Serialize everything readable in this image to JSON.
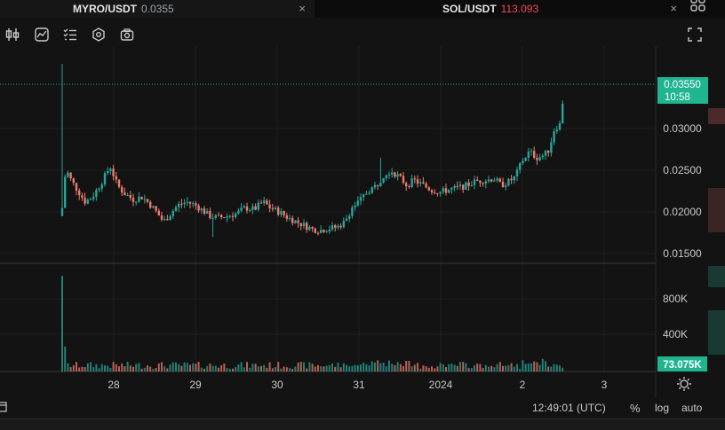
{
  "tabs": [
    {
      "symbol": "MYRO/USDT",
      "price": "0.0355",
      "close": "×"
    },
    {
      "symbol": "SOL/USDT",
      "price": "113.093",
      "close": "×"
    }
  ],
  "toolbar": {
    "icons": [
      "candles-icon",
      "indicator-icon",
      "checklist-icon",
      "settings-hex-icon",
      "camera-icon",
      "fullscreen-icon"
    ]
  },
  "price_axis": {
    "ticks": [
      "0.03000",
      "0.02500",
      "0.02000",
      "0.01500"
    ],
    "current_price": "0.03550",
    "countdown": "10:58"
  },
  "volume_axis": {
    "ticks": [
      "800K",
      "400K"
    ],
    "current_volume": "73.075K"
  },
  "time_axis": {
    "ticks": [
      "28",
      "29",
      "30",
      "31",
      "2024",
      "2",
      "3"
    ]
  },
  "bottom_bar": {
    "clock": "12:49:01 (UTC)",
    "percent": "%",
    "log": "log",
    "auto": "auto"
  },
  "colors": {
    "up": "#26a69a",
    "down": "#ef7a6a",
    "background": "#131313",
    "price_tag": "#1fb58f",
    "volume_tag": "#1fb58f"
  },
  "chart_data": {
    "type": "candlestick",
    "symbol": "MYRO/USDT",
    "ylim": [
      0.0135,
      0.0385
    ],
    "x_ticks": [
      "28",
      "29",
      "30",
      "31",
      "2024",
      "2",
      "3"
    ],
    "volume_ticks": [
      "800K",
      "400K"
    ],
    "last_price": 0.0355,
    "last_volume": "73.075K"
  }
}
